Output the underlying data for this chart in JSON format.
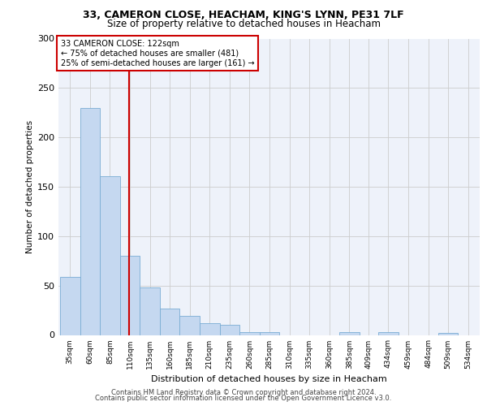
{
  "title_line1": "33, CAMERON CLOSE, HEACHAM, KING'S LYNN, PE31 7LF",
  "title_line2": "Size of property relative to detached houses in Heacham",
  "xlabel": "Distribution of detached houses by size in Heacham",
  "ylabel": "Number of detached properties",
  "footer_line1": "Contains HM Land Registry data © Crown copyright and database right 2024.",
  "footer_line2": "Contains public sector information licensed under the Open Government Licence v3.0.",
  "annotation_line1": "33 CAMERON CLOSE: 122sqm",
  "annotation_line2": "← 75% of detached houses are smaller (481)",
  "annotation_line3": "25% of semi-detached houses are larger (161) →",
  "bar_color": "#c5d8f0",
  "bar_edge_color": "#7aadd4",
  "vline_x": 122,
  "vline_color": "#cc0000",
  "categories": [
    "35sqm",
    "60sqm",
    "85sqm",
    "110sqm",
    "135sqm",
    "160sqm",
    "185sqm",
    "210sqm",
    "235sqm",
    "260sqm",
    "285sqm",
    "310sqm",
    "335sqm",
    "360sqm",
    "385sqm",
    "409sqm",
    "434sqm",
    "459sqm",
    "484sqm",
    "509sqm",
    "534sqm"
  ],
  "bin_edges": [
    35,
    60,
    85,
    110,
    135,
    160,
    185,
    210,
    235,
    260,
    285,
    310,
    335,
    360,
    385,
    409,
    434,
    459,
    484,
    509,
    534
  ],
  "values": [
    59,
    230,
    161,
    80,
    48,
    27,
    19,
    12,
    10,
    3,
    3,
    0,
    0,
    0,
    3,
    0,
    3,
    0,
    0,
    2,
    0
  ],
  "ylim": [
    0,
    300
  ],
  "yticks": [
    0,
    50,
    100,
    150,
    200,
    250,
    300
  ],
  "grid_color": "#cccccc",
  "background_color": "#eef2fa"
}
